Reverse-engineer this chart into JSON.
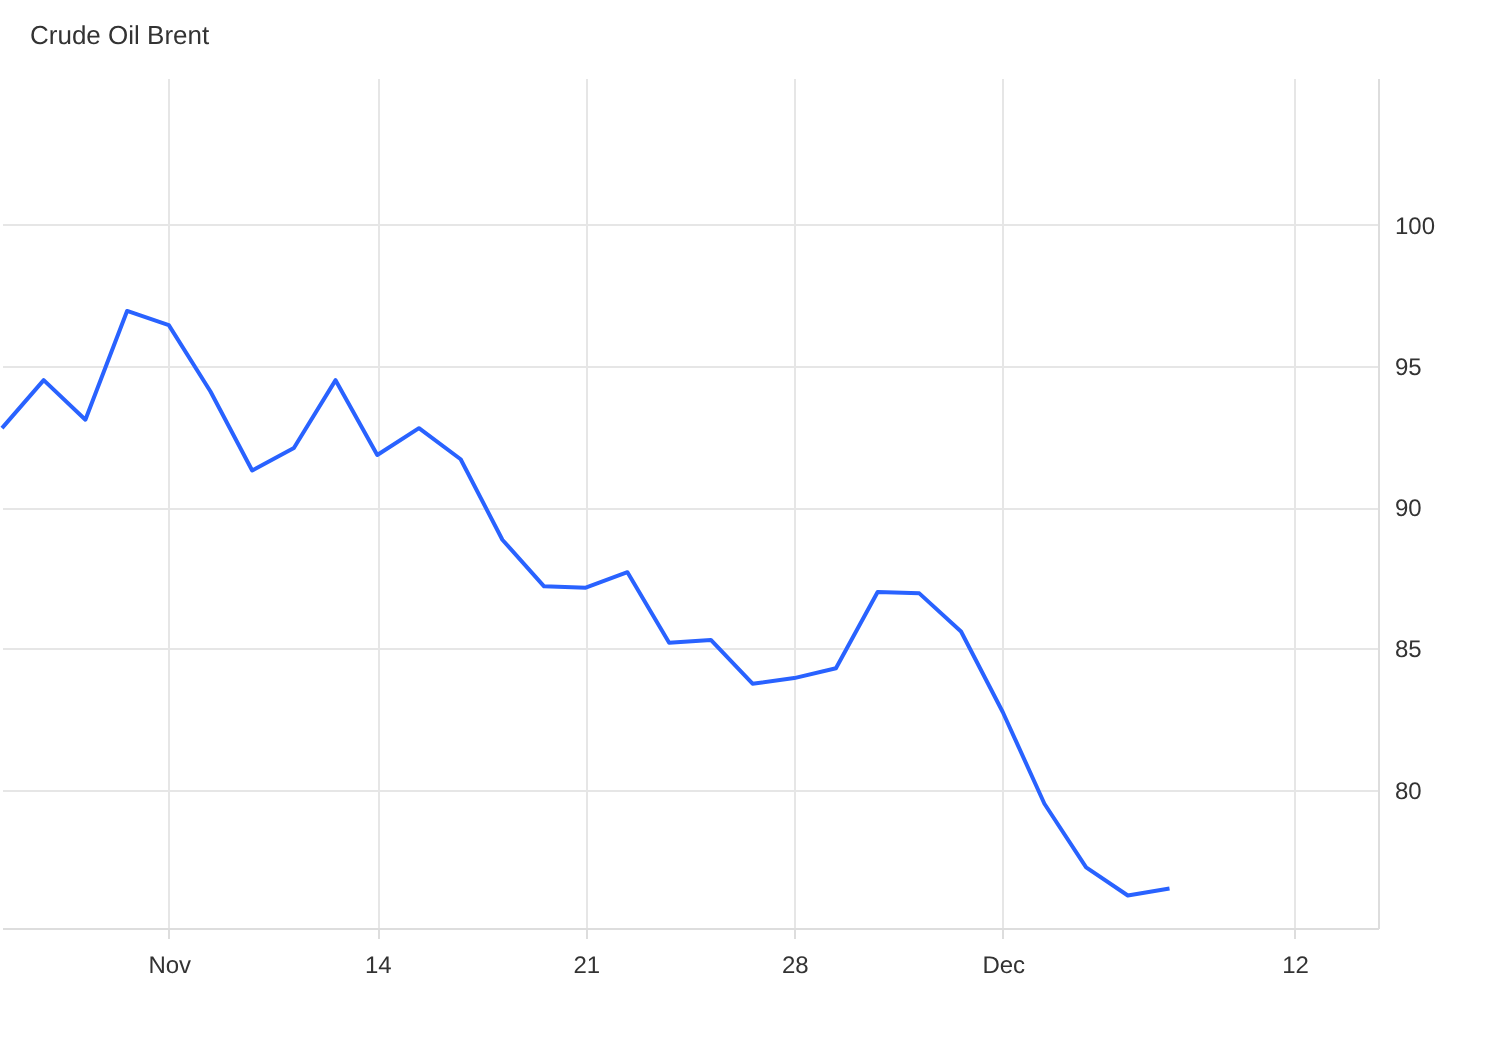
{
  "chart_data": {
    "type": "line",
    "title": "Crude Oil Brent",
    "categories": [
      null,
      null,
      null,
      null,
      "Nov",
      null,
      null,
      null,
      null,
      "14",
      null,
      null,
      null,
      null,
      "21",
      null,
      null,
      null,
      null,
      "28",
      null,
      null,
      null,
      null,
      "Dec",
      null,
      null,
      null,
      null,
      null,
      null,
      "12",
      null,
      null
    ],
    "series": [
      {
        "color": "#2962ff",
        "values": [
          92.8,
          94.5,
          93.1,
          96.95,
          96.45,
          94.1,
          91.3,
          92.1,
          94.5,
          91.85,
          92.8,
          91.7,
          88.85,
          87.2,
          87.15,
          87.7,
          85.2,
          85.3,
          83.75,
          83.95,
          84.3,
          87.0,
          86.95,
          85.6,
          82.75,
          79.5,
          77.25,
          76.25,
          76.5,
          null,
          null,
          null,
          null,
          null
        ]
      }
    ],
    "ylim": [
      75.1,
      105.2
    ],
    "yticks": [
      80,
      85,
      90,
      95,
      100
    ],
    "grid": true,
    "marker": "none",
    "line_style": "solid"
  }
}
